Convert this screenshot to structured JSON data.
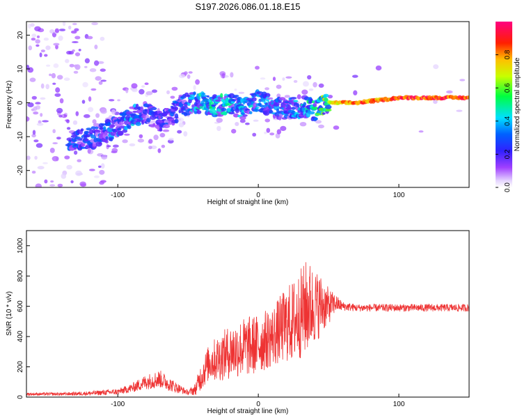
{
  "figure_title": "S197.2026.086.01.18.E15",
  "chart_data": [
    {
      "type": "heatmap",
      "title": "S197.2026.086.01.18.E15",
      "xlabel": "Height of straight line (km)",
      "ylabel": "Frequency (Hz)",
      "xlim": [
        -165,
        150
      ],
      "ylim": [
        -25,
        24
      ],
      "xticks": [
        -100,
        0,
        100
      ],
      "xtick_labels": [
        "-100",
        "0",
        "100"
      ],
      "yticks": [
        -20,
        -10,
        0,
        10,
        20
      ],
      "ytick_labels": [
        "-20",
        "-10",
        "0",
        "10",
        "20"
      ],
      "colorbar": {
        "label": "Normalized spectral amplitude",
        "range": [
          0,
          1
        ],
        "ticks": [
          0.0,
          0.2,
          0.4,
          0.6,
          0.8
        ],
        "tick_labels": [
          "0.0",
          "0.2",
          "0.4",
          "0.6",
          "0.8"
        ],
        "colors": [
          "#e8d8ff",
          "#8a2be2",
          "#0000ff",
          "#00e5ff",
          "#00ff00",
          "#ffff00",
          "#ff8000",
          "#ff0000",
          "#ff0080"
        ]
      },
      "ridge": {
        "x": [
          -130,
          -115,
          -100,
          -90,
          -80,
          -70,
          -60,
          -50,
          -40,
          -30,
          -20,
          -10,
          0,
          10,
          20,
          30,
          40,
          45,
          50,
          60,
          70,
          80,
          90,
          100,
          110,
          120,
          130,
          140,
          150
        ],
        "y": [
          -11,
          -10,
          -7,
          -4,
          -3,
          -5,
          -3,
          0,
          0,
          -1,
          0,
          -2,
          1,
          -1,
          -2,
          -1,
          -2,
          -1,
          0,
          0,
          0,
          0.5,
          1,
          1.5,
          1.5,
          1.5,
          1.5,
          1.5,
          1.5
        ],
        "amplitude": [
          0.3,
          0.3,
          0.35,
          0.4,
          0.3,
          0.25,
          0.3,
          0.4,
          0.45,
          0.5,
          0.45,
          0.4,
          0.4,
          0.35,
          0.35,
          0.4,
          0.5,
          0.55,
          0.7,
          0.8,
          0.85,
          0.85,
          0.85,
          0.9,
          0.9,
          0.9,
          0.9,
          0.9,
          0.9
        ]
      }
    },
    {
      "type": "line",
      "xlabel": "Height of straight line (km)",
      "ylabel": "SNR (10 * v/v)",
      "xlim": [
        -165,
        150
      ],
      "ylim": [
        0,
        1100
      ],
      "xticks": [
        -100,
        0,
        100
      ],
      "xtick_labels": [
        "-100",
        "0",
        "100"
      ],
      "yticks": [
        0,
        200,
        400,
        600,
        800,
        1000
      ],
      "ytick_labels": [
        "0",
        "200",
        "400",
        "600",
        "800",
        "1000"
      ],
      "series": [
        {
          "name": "SNR",
          "color": "#ee3333",
          "envelope_x": [
            -165,
            -140,
            -120,
            -100,
            -90,
            -80,
            -70,
            -60,
            -50,
            -45,
            -40,
            -35,
            -30,
            -20,
            -10,
            0,
            10,
            20,
            25,
            30,
            35,
            40,
            45,
            50,
            55,
            60,
            70,
            80,
            90,
            100,
            110,
            120,
            130,
            140,
            150
          ],
          "envelope_mean": [
            20,
            20,
            25,
            35,
            60,
            100,
            120,
            70,
            30,
            50,
            150,
            230,
            250,
            300,
            330,
            350,
            400,
            480,
            500,
            550,
            600,
            600,
            610,
            600,
            620,
            600,
            590,
            590,
            590,
            590,
            590,
            590,
            590,
            590,
            590
          ],
          "envelope_spread": [
            10,
            10,
            15,
            20,
            30,
            50,
            60,
            40,
            15,
            40,
            100,
            120,
            150,
            180,
            200,
            200,
            200,
            250,
            280,
            300,
            320,
            250,
            200,
            120,
            60,
            30,
            25,
            25,
            25,
            25,
            25,
            25,
            25,
            25,
            25
          ]
        }
      ]
    }
  ]
}
